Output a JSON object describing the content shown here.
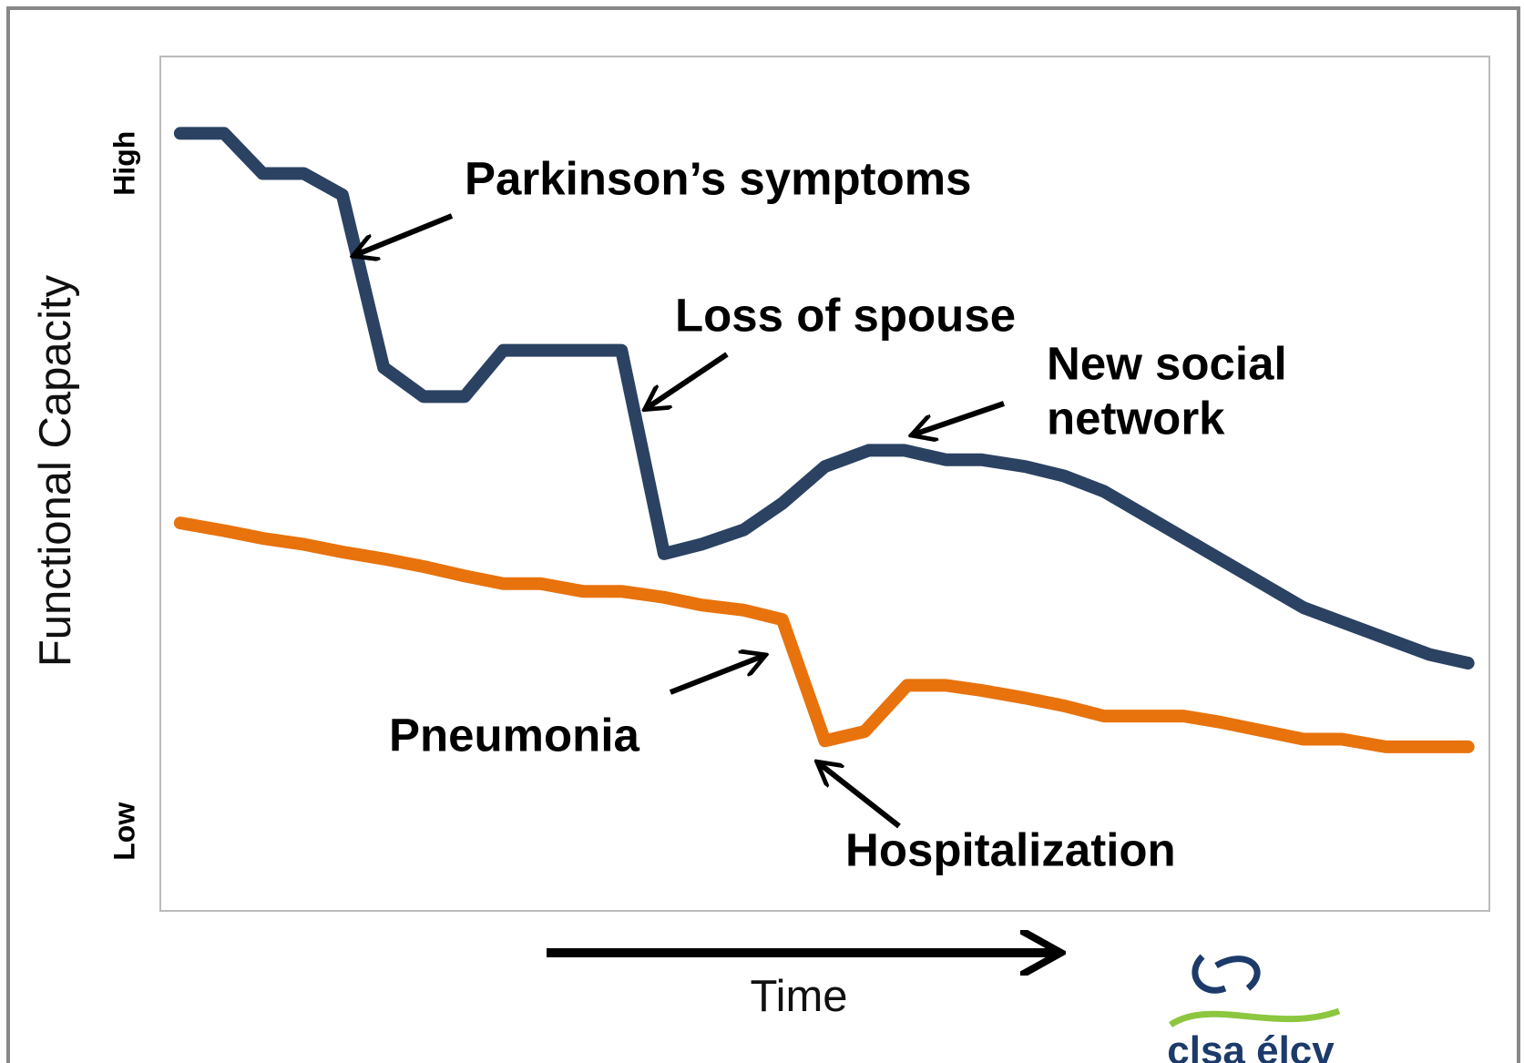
{
  "chart_data": {
    "type": "line",
    "y_label": "Functional Capacity",
    "x_label": "Time",
    "xlim": [
      0,
      100
    ],
    "ylim": [
      0,
      100
    ],
    "yticks": [
      {
        "value": 87.5,
        "label": "High"
      },
      {
        "value": 9.3,
        "label": "Low"
      }
    ],
    "series": [
      {
        "color": "#2b4262",
        "x": [
          1.5,
          4.8,
          7.7,
          10.8,
          13.7,
          16.8,
          19.8,
          22.9,
          25.8,
          34.7,
          37.9,
          40.7,
          43.9,
          46.8,
          50.0,
          53.3,
          56.0,
          59.1,
          61.8,
          65.1,
          68.0,
          71.0,
          86.0,
          95.5,
          98.4
        ],
        "y": [
          91.0,
          91.0,
          86.3,
          86.3,
          83.8,
          63.6,
          60.2,
          60.2,
          65.6,
          65.6,
          41.8,
          42.9,
          44.6,
          47.7,
          52.0,
          53.9,
          53.9,
          52.8,
          52.8,
          52.0,
          50.9,
          49.1,
          35.5,
          30.0,
          29.0
        ]
      },
      {
        "color": "#e8720c",
        "x": [
          1.5,
          4.8,
          7.7,
          10.8,
          13.7,
          16.8,
          19.8,
          22.9,
          25.8,
          28.6,
          31.8,
          34.7,
          37.9,
          40.7,
          43.9,
          46.8,
          50.0,
          53.0,
          56.2,
          59.1,
          61.8,
          65.1,
          68.0,
          71.0,
          77.0,
          79.7,
          86.0,
          88.9,
          92.2,
          98.4
        ],
        "y": [
          45.4,
          44.5,
          43.6,
          42.9,
          42.0,
          41.2,
          40.3,
          39.2,
          38.3,
          38.3,
          37.4,
          37.4,
          36.7,
          35.8,
          35.2,
          34.1,
          19.9,
          21.0,
          26.4,
          26.4,
          25.8,
          24.9,
          24.0,
          22.8,
          22.8,
          22.1,
          20.1,
          20.1,
          19.2,
          19.2
        ]
      }
    ],
    "annotations": [
      {
        "lines": [
          "Parkinson’s symptoms"
        ]
      },
      {
        "lines": [
          "Loss of spouse"
        ]
      },
      {
        "lines": [
          "New social",
          "network"
        ]
      },
      {
        "lines": [
          "Pneumonia"
        ]
      },
      {
        "lines": [
          "Hospitalization"
        ]
      }
    ],
    "logo": "clsa élcv"
  }
}
